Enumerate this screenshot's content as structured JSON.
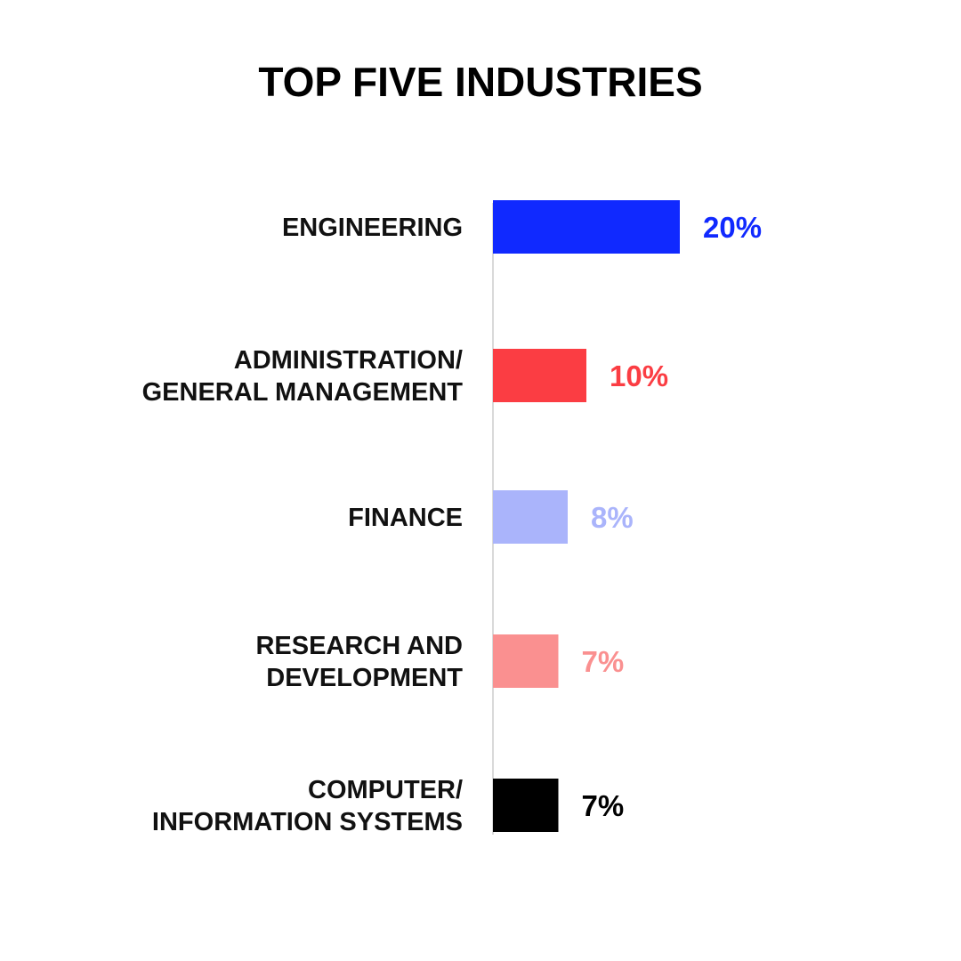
{
  "chart_data": {
    "type": "bar",
    "orientation": "horizontal",
    "title": "TOP FIVE INDUSTRIES",
    "categories": [
      [
        "ENGINEERING"
      ],
      [
        "ADMINISTRATION/",
        "GENERAL MANAGEMENT"
      ],
      [
        "FINANCE"
      ],
      [
        "RESEARCH AND",
        "DEVELOPMENT"
      ],
      [
        "COMPUTER/",
        "INFORMATION SYSTEMS"
      ]
    ],
    "values": [
      20,
      10,
      8,
      7,
      7
    ],
    "value_labels": [
      "20%",
      "10%",
      "8%",
      "7%",
      "7%"
    ],
    "colors": [
      "#1029ff",
      "#fb3d43",
      "#aab4fb",
      "#fa9090",
      "#000000"
    ],
    "xlabel": "",
    "ylabel": "",
    "unit": "%",
    "xlim": [
      0,
      20
    ],
    "grid": false,
    "legend": "none",
    "axis_color": "#d9d9d9"
  }
}
